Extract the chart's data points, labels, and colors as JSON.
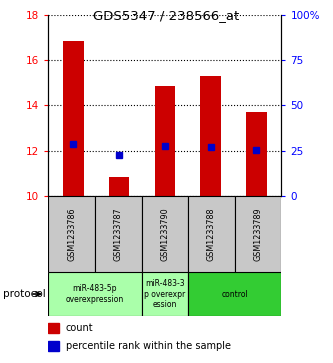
{
  "title": "GDS5347 / 238566_at",
  "samples": [
    "GSM1233786",
    "GSM1233787",
    "GSM1233790",
    "GSM1233788",
    "GSM1233789"
  ],
  "bar_bottoms": [
    10,
    10,
    10,
    10,
    10
  ],
  "bar_tops": [
    16.85,
    10.85,
    14.85,
    15.3,
    13.7
  ],
  "blue_values": [
    12.3,
    11.8,
    12.2,
    12.15,
    12.05
  ],
  "ylim_left": [
    10,
    18
  ],
  "ylim_right": [
    0,
    100
  ],
  "yticks_left": [
    10,
    12,
    14,
    16,
    18
  ],
  "yticks_right": [
    0,
    25,
    50,
    75,
    100
  ],
  "ytick_labels_right": [
    "0",
    "25",
    "50",
    "75",
    "100%"
  ],
  "bar_color": "#cc0000",
  "blue_color": "#0000cc",
  "bar_width": 0.45,
  "plot_bg_color": "#ffffff",
  "sample_box_color": "#c8c8c8",
  "group_info": [
    [
      0,
      2,
      "miR-483-5p\noverexpression",
      "#aaffaa"
    ],
    [
      2,
      3,
      "miR-483-3\np overexpr\nession",
      "#aaffaa"
    ],
    [
      3,
      5,
      "control",
      "#33cc33"
    ]
  ],
  "legend_count_label": "count",
  "legend_pct_label": "percentile rank within the sample"
}
